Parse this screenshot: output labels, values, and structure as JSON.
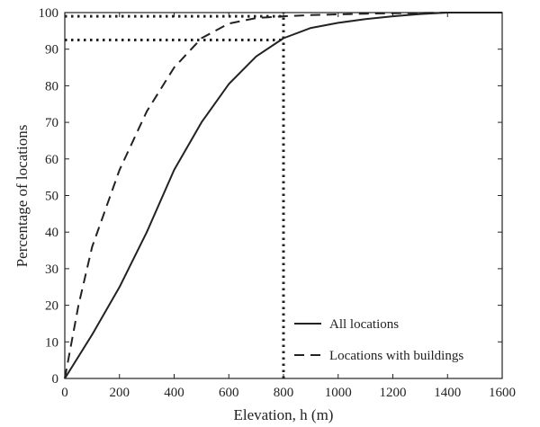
{
  "chart_data": {
    "type": "line",
    "xlabel": "Elevation, h (m)",
    "ylabel": "Percentage of locations",
    "xlim": [
      0,
      1600
    ],
    "ylim": [
      0,
      100
    ],
    "xticks": [
      0,
      200,
      400,
      600,
      800,
      1000,
      1200,
      1400,
      1600
    ],
    "yticks": [
      0,
      10,
      20,
      30,
      40,
      50,
      60,
      70,
      80,
      90,
      100
    ],
    "grid": false,
    "legend_position": "bottom-right",
    "series": [
      {
        "name": "All locations",
        "style": "solid",
        "color": "#222222",
        "x": [
          0,
          100,
          200,
          300,
          400,
          500,
          600,
          700,
          800,
          900,
          1000,
          1100,
          1200,
          1300,
          1400,
          1500,
          1600
        ],
        "y": [
          0,
          12,
          25,
          40,
          57,
          70,
          80.5,
          88,
          93,
          95.8,
          97.2,
          98.2,
          99,
          99.6,
          100,
          100,
          100
        ]
      },
      {
        "name": "Locations with buildings",
        "style": "dashed",
        "color": "#222222",
        "x": [
          0,
          50,
          100,
          200,
          300,
          400,
          500,
          600,
          700,
          800,
          900,
          1000,
          1100,
          1200,
          1300,
          1400,
          1500,
          1600
        ],
        "y": [
          0,
          20,
          36,
          57,
          73,
          85,
          93,
          97,
          98.5,
          99,
          99.3,
          99.5,
          99.7,
          99.8,
          99.9,
          100,
          100,
          100
        ]
      }
    ],
    "reference_lines": [
      {
        "style": "dotted",
        "x": [
          0,
          800
        ],
        "y": [
          92.5,
          92.5
        ]
      },
      {
        "style": "dotted",
        "x": [
          0,
          800
        ],
        "y": [
          99,
          99
        ]
      },
      {
        "style": "dotted",
        "x": [
          800,
          800
        ],
        "y": [
          0,
          100
        ]
      }
    ]
  }
}
